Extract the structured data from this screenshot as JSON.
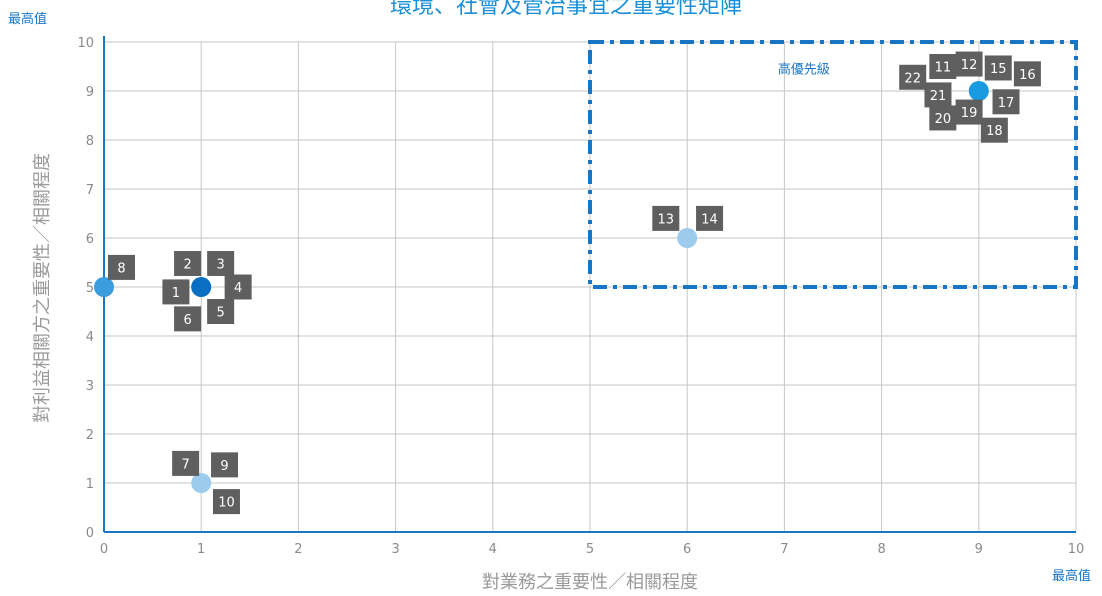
{
  "chart_data": {
    "type": "scatter",
    "title": "環境、社會及管治事宜之重要性矩陣",
    "xlabel": "對業務之重要性／相關程度",
    "ylabel": "對利益相關方之重要性／相關程度",
    "x_max_label": "最高值",
    "y_max_label": "最高值",
    "xlim": [
      0,
      10
    ],
    "ylim": [
      0,
      10
    ],
    "xticks": [
      "0",
      "1",
      "2",
      "3",
      "4",
      "5",
      "6",
      "7",
      "8",
      "9",
      "10"
    ],
    "yticks": [
      "0",
      "1",
      "2",
      "3",
      "4",
      "5",
      "6",
      "7",
      "8",
      "9",
      "10"
    ],
    "grid": true,
    "highlight_region": {
      "label": "高優先級",
      "x": [
        5,
        10
      ],
      "y": [
        5,
        10
      ]
    },
    "points": [
      {
        "x": 0,
        "y": 5,
        "color": "#3b9ddd"
      },
      {
        "x": 1,
        "y": 5,
        "color": "#0a6fc2"
      },
      {
        "x": 1,
        "y": 1,
        "color": "#9ccbee"
      },
      {
        "x": 6,
        "y": 6,
        "color": "#9ccbee"
      },
      {
        "x": 9,
        "y": 9,
        "color": "#1a9ae0"
      }
    ],
    "labels": [
      {
        "text": "1",
        "x": 0.74,
        "y": 4.9
      },
      {
        "text": "2",
        "x": 0.86,
        "y": 5.48
      },
      {
        "text": "3",
        "x": 1.2,
        "y": 5.48
      },
      {
        "text": "4",
        "x": 1.38,
        "y": 5.0
      },
      {
        "text": "5",
        "x": 1.2,
        "y": 4.5
      },
      {
        "text": "6",
        "x": 0.86,
        "y": 4.35
      },
      {
        "text": "7",
        "x": 0.84,
        "y": 1.4
      },
      {
        "text": "8",
        "x": 0.18,
        "y": 5.4
      },
      {
        "text": "9",
        "x": 1.24,
        "y": 1.37
      },
      {
        "text": "10",
        "x": 1.26,
        "y": 0.62
      },
      {
        "text": "11",
        "x": 8.63,
        "y": 9.5
      },
      {
        "text": "12",
        "x": 8.9,
        "y": 9.55
      },
      {
        "text": "13",
        "x": 5.78,
        "y": 6.4
      },
      {
        "text": "14",
        "x": 6.23,
        "y": 6.4
      },
      {
        "text": "15",
        "x": 9.2,
        "y": 9.47
      },
      {
        "text": "16",
        "x": 9.5,
        "y": 9.35
      },
      {
        "text": "17",
        "x": 9.28,
        "y": 8.78
      },
      {
        "text": "18",
        "x": 9.16,
        "y": 8.2
      },
      {
        "text": "19",
        "x": 8.9,
        "y": 8.57
      },
      {
        "text": "20",
        "x": 8.63,
        "y": 8.45
      },
      {
        "text": "21",
        "x": 8.58,
        "y": 8.92
      },
      {
        "text": "22",
        "x": 8.32,
        "y": 9.28
      }
    ]
  },
  "colors": {
    "axis": "#1976c5",
    "grid": "#c6c6c6",
    "label_box": "#5f5f5f",
    "region": "#1976c5"
  }
}
